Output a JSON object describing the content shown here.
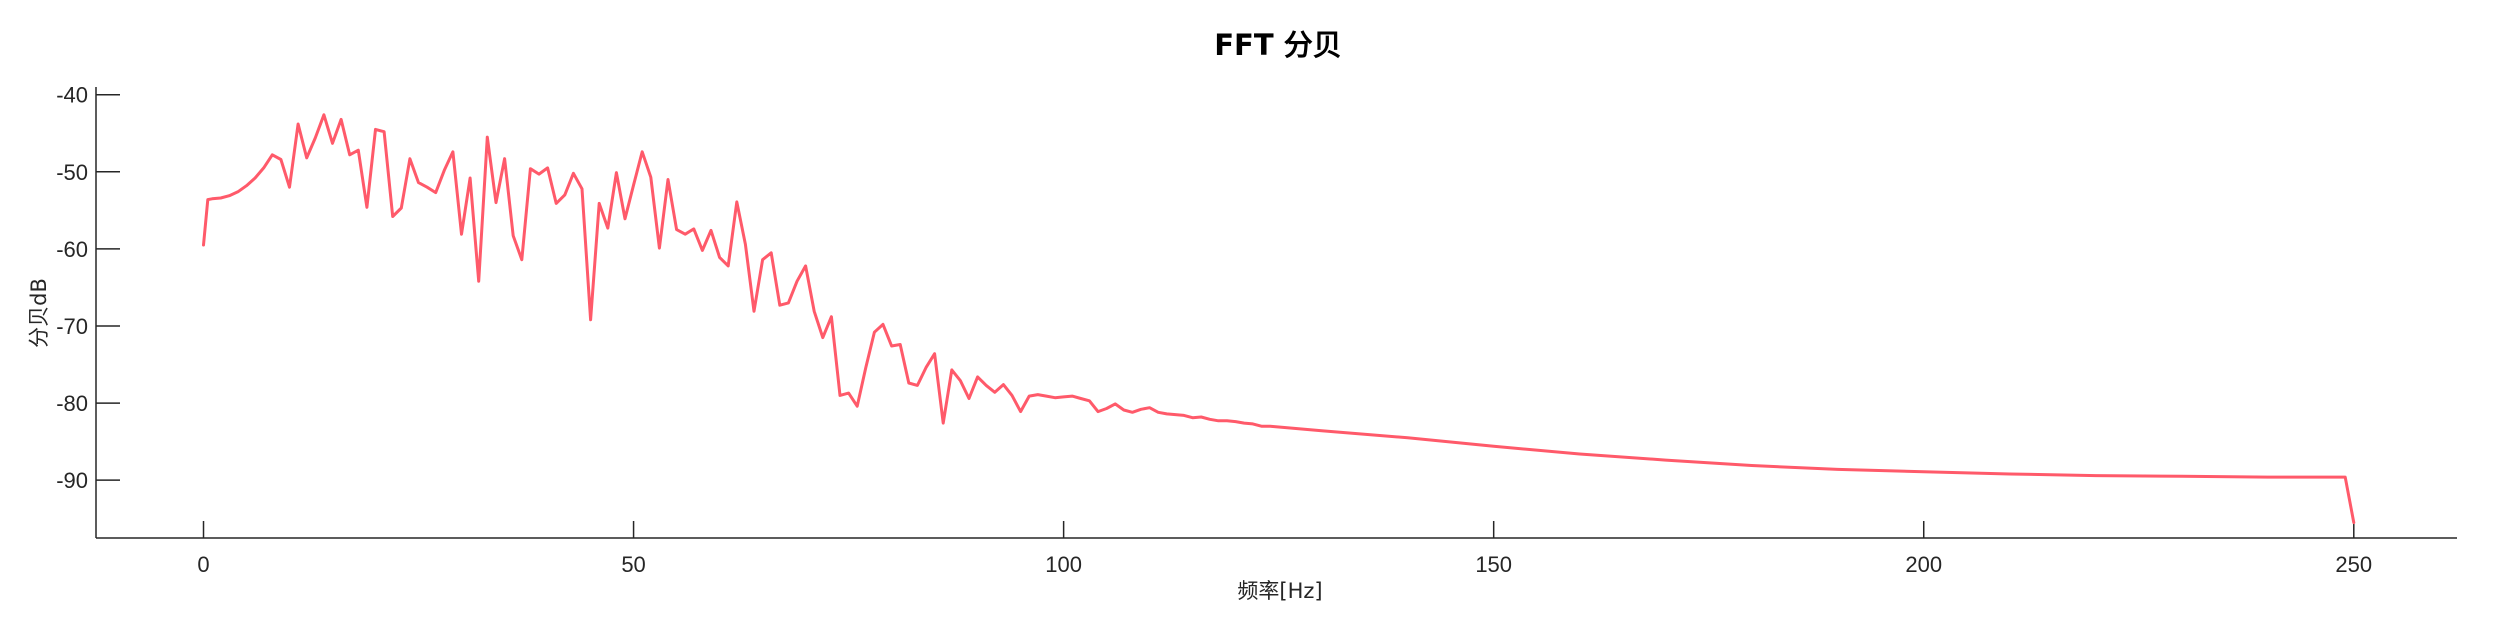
{
  "chart_data": {
    "type": "line",
    "title": "FFT 分贝",
    "xlabel": "频率[Hz]",
    "ylabel": "分贝dB",
    "xlim": [
      -12.5,
      262
    ],
    "ylim": [
      -97.5,
      -39
    ],
    "xticks": [
      0,
      50,
      100,
      150,
      200,
      250
    ],
    "yticks": [
      -40,
      -50,
      -60,
      -70,
      -80,
      -90
    ],
    "grid": false,
    "series_color": "#ff5a6a",
    "series": [
      {
        "x": [
          0,
          0.5,
          1,
          2,
          3,
          4,
          5,
          6,
          7,
          8,
          9,
          10,
          11,
          12,
          13,
          14,
          15,
          16,
          17,
          18,
          19,
          20,
          21,
          22,
          23,
          24,
          25,
          26,
          27,
          28,
          29,
          30,
          31,
          32,
          33,
          34,
          35,
          36,
          37,
          38,
          39,
          40,
          41,
          42,
          43,
          44,
          45,
          46,
          47,
          48,
          49,
          50,
          51,
          52,
          53,
          54,
          55,
          56,
          57,
          58,
          59,
          60,
          61,
          62,
          63,
          64,
          65,
          66,
          67,
          68,
          69,
          70,
          71,
          72,
          73,
          74,
          75,
          76,
          77,
          78,
          79,
          80,
          81,
          82,
          83,
          84,
          85,
          86,
          87,
          88,
          89,
          90,
          91,
          92,
          93,
          94,
          95,
          96,
          97,
          98,
          99,
          100,
          101,
          102,
          103,
          104,
          105,
          106,
          107,
          108,
          109,
          110,
          111,
          112,
          113,
          114,
          115,
          116,
          117,
          118,
          119,
          120,
          121,
          122,
          123,
          124,
          125,
          130,
          140,
          150,
          160,
          170,
          180,
          190,
          200,
          210,
          220,
          230,
          240,
          249,
          250
        ],
        "y": [
          -59.5,
          -53.6,
          -53.5,
          -53.4,
          -53.1,
          -52.6,
          -51.8,
          -50.8,
          -49.5,
          -47.8,
          -48.4,
          -52,
          -43.8,
          -48.2,
          -45.6,
          -42.6,
          -46.3,
          -43.2,
          -47.8,
          -47.2,
          -54.6,
          -44.5,
          -44.8,
          -55.8,
          -54.7,
          -48.3,
          -51.4,
          -52,
          -52.7,
          -49.8,
          -47.4,
          -58.1,
          -50.8,
          -64.2,
          -45.5,
          -54,
          -48.3,
          -58.3,
          -61.4,
          -49.6,
          -50.3,
          -49.5,
          -54.1,
          -53,
          -50.2,
          -52.2,
          -69.2,
          -54.1,
          -57.3,
          -50.1,
          -56.1,
          -51.7,
          -47.4,
          -50.7,
          -59.9,
          -51,
          -57.5,
          -58.1,
          -57.4,
          -60.2,
          -57.6,
          -61.1,
          -62.2,
          -53.9,
          -59.4,
          -68.1,
          -61.4,
          -60.5,
          -67.3,
          -67,
          -64.2,
          -62.2,
          -68.1,
          -71.5,
          -68.8,
          -79,
          -78.7,
          -80.4,
          -75.4,
          -70.8,
          -69.8,
          -72.6,
          -72.4,
          -77.4,
          -77.7,
          -75.4,
          -73.6,
          -82.6,
          -75.7,
          -77.1,
          -79.4,
          -76.6,
          -77.7,
          -78.6,
          -77.6,
          -79,
          -81.1,
          -79.1,
          -78.9,
          -79.1,
          -79.3,
          -79.2,
          -79.1,
          -79.4,
          -79.7,
          -81.1,
          -80.7,
          -80.1,
          -80.9,
          -81.2,
          -80.8,
          -80.6,
          -81.2,
          -81.4,
          -81.5,
          -81.6,
          -81.9,
          -81.8,
          -82.1,
          -82.3,
          -82.3,
          -82.4,
          -82.6,
          -82.7,
          -83,
          -83,
          -83.1,
          -83.6,
          -84.5,
          -85.6,
          -86.6,
          -87.4,
          -88.1,
          -88.6,
          -88.9,
          -89.2,
          -89.4,
          -89.5,
          -89.6,
          -89.6,
          -95.5
        ]
      }
    ]
  }
}
